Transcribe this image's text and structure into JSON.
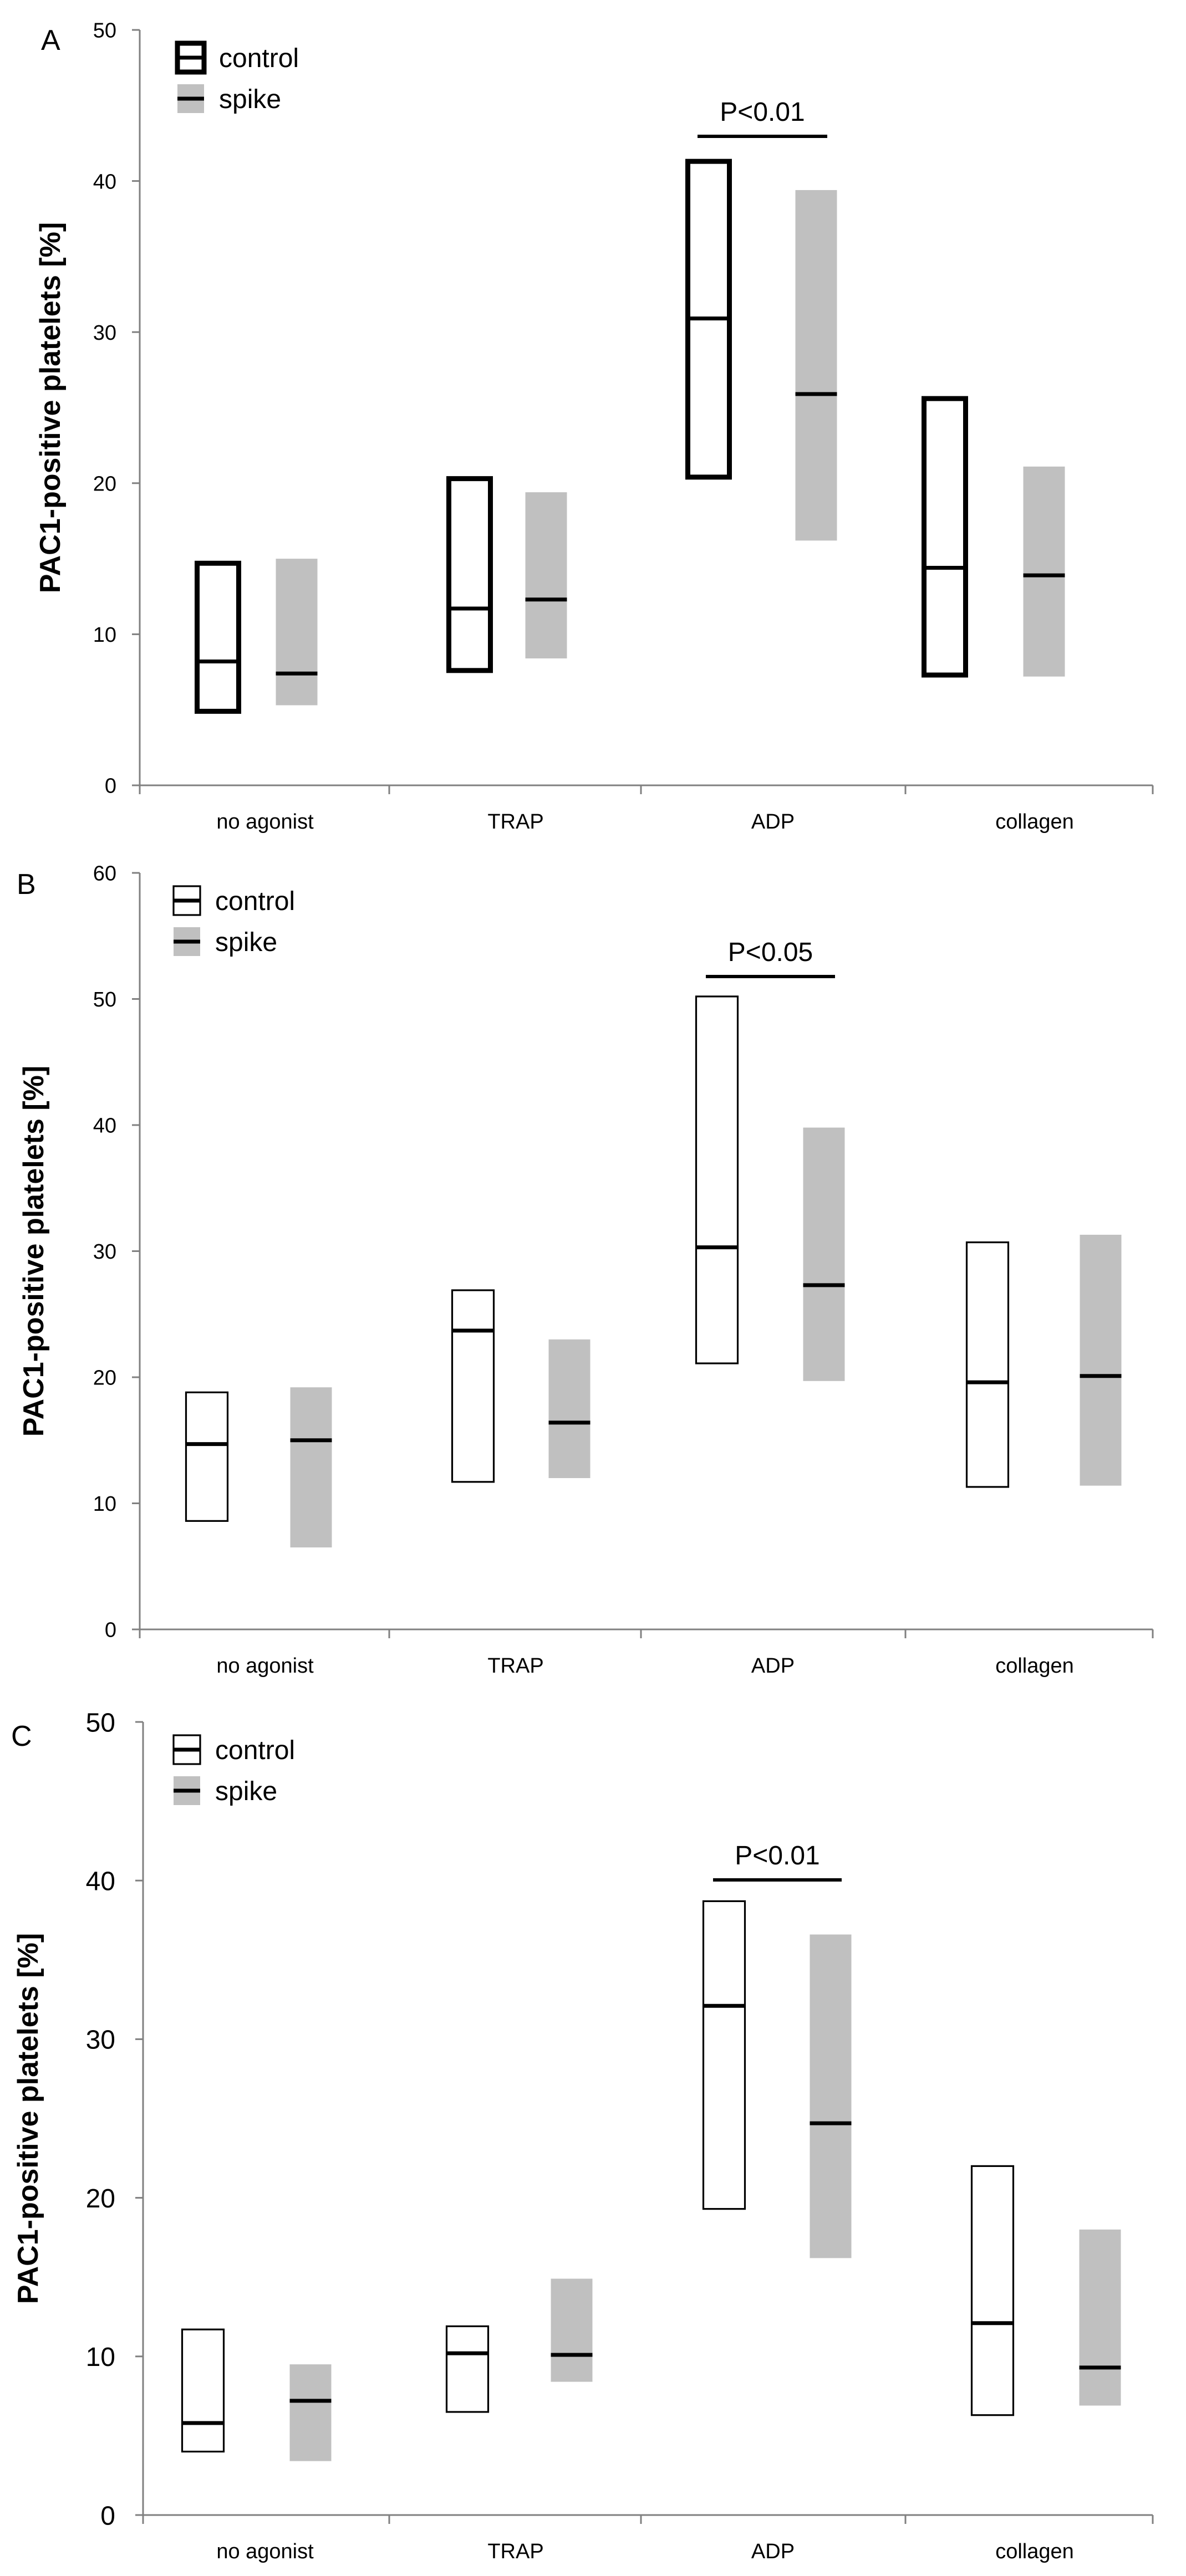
{
  "figure": {
    "panel_letters": [
      "A",
      "B",
      "C"
    ],
    "legend": {
      "control_label": "control",
      "spike_label": "spike"
    },
    "colors": {
      "control_fill": "#ffffff",
      "spike_fill": "#c0c0c0",
      "axis": "#808080",
      "text": "#000000"
    }
  },
  "chart_data": [
    {
      "type": "box",
      "panel": "A",
      "ylabel": "PAC1-positive platelets [%]",
      "ylim": [
        0,
        50
      ],
      "yticks": [
        0,
        10,
        20,
        30,
        40,
        50
      ],
      "categories": [
        "no agonist",
        "TRAP",
        "ADP",
        "collagen"
      ],
      "series": [
        {
          "name": "control",
          "values": [
            {
              "low": 4.9,
              "median": 8.2,
              "high": 14.7
            },
            {
              "low": 7.6,
              "median": 11.7,
              "high": 20.3
            },
            {
              "low": 20.4,
              "median": 30.9,
              "high": 41.3
            },
            {
              "low": 7.3,
              "median": 14.4,
              "high": 25.6
            }
          ]
        },
        {
          "name": "spike",
          "values": [
            {
              "low": 5.3,
              "median": 7.4,
              "high": 15.0
            },
            {
              "low": 8.4,
              "median": 12.3,
              "high": 19.4
            },
            {
              "low": 16.2,
              "median": 25.9,
              "high": 39.4
            },
            {
              "low": 7.2,
              "median": 13.9,
              "high": 21.1
            }
          ]
        }
      ],
      "annotations": [
        {
          "text": "P<0.01",
          "category": "ADP"
        }
      ]
    },
    {
      "type": "box",
      "panel": "B",
      "ylabel": "PAC1-positive platelets [%]",
      "ylim": [
        0,
        60
      ],
      "yticks": [
        0,
        10,
        20,
        30,
        40,
        50,
        60
      ],
      "categories": [
        "no agonist",
        "TRAP",
        "ADP",
        "collagen"
      ],
      "series": [
        {
          "name": "control",
          "values": [
            {
              "low": 8.6,
              "median": 14.7,
              "high": 18.8
            },
            {
              "low": 11.7,
              "median": 23.7,
              "high": 26.9
            },
            {
              "low": 21.1,
              "median": 30.3,
              "high": 50.2
            },
            {
              "low": 11.3,
              "median": 19.6,
              "high": 30.7
            }
          ]
        },
        {
          "name": "spike",
          "values": [
            {
              "low": 6.5,
              "median": 15.0,
              "high": 19.2
            },
            {
              "low": 12.0,
              "median": 16.4,
              "high": 23.0
            },
            {
              "low": 19.7,
              "median": 27.3,
              "high": 39.8
            },
            {
              "low": 11.4,
              "median": 20.1,
              "high": 31.3
            }
          ]
        }
      ],
      "annotations": [
        {
          "text": "P<0.05",
          "category": "ADP"
        }
      ]
    },
    {
      "type": "box",
      "panel": "C",
      "ylabel": "PAC1-positive platelets [%]",
      "ylim": [
        0,
        50
      ],
      "yticks": [
        0,
        10,
        20,
        30,
        40,
        50
      ],
      "categories": [
        "no agonist",
        "TRAP",
        "ADP",
        "collagen"
      ],
      "series": [
        {
          "name": "control",
          "values": [
            {
              "low": 4.0,
              "median": 5.8,
              "high": 11.7
            },
            {
              "low": 6.5,
              "median": 10.2,
              "high": 11.9
            },
            {
              "low": 19.3,
              "median": 32.1,
              "high": 38.7
            },
            {
              "low": 6.3,
              "median": 12.1,
              "high": 22.0
            }
          ]
        },
        {
          "name": "spike",
          "values": [
            {
              "low": 3.4,
              "median": 7.2,
              "high": 9.5
            },
            {
              "low": 8.4,
              "median": 10.1,
              "high": 14.9
            },
            {
              "low": 16.2,
              "median": 24.7,
              "high": 36.6
            },
            {
              "low": 6.9,
              "median": 9.3,
              "high": 18.0
            }
          ]
        }
      ],
      "annotations": [
        {
          "text": "P<0.01",
          "category": "ADP"
        }
      ]
    }
  ]
}
